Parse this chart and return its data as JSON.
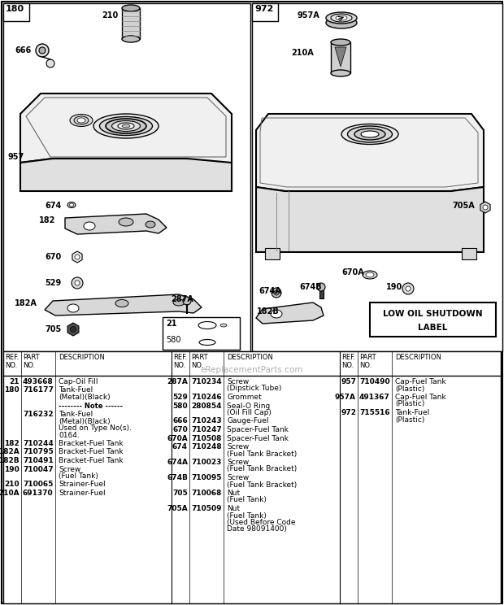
{
  "bg_color": "#ffffff",
  "watermark": "eReplacementParts.com",
  "parts_col1": [
    [
      "21",
      "493668",
      "Cap-Oil Fill"
    ],
    [
      "180",
      "716177",
      "Tank-Fuel\n(Metal)(Black)"
    ],
    [
      "NOTE",
      "",
      "-------- Note ------"
    ],
    [
      "",
      "716232",
      "Tank-Fuel\n(Metal)(Black)\nUsed on Type No(s).\n0164."
    ],
    [
      "182",
      "710244",
      "Bracket-Fuel Tank"
    ],
    [
      "182A",
      "710795",
      "Bracket-Fuel Tank"
    ],
    [
      "182B",
      "710491",
      "Bracket-Fuel Tank"
    ],
    [
      "190",
      "710047",
      "Screw\n(Fuel Tank)"
    ],
    [
      "210",
      "710065",
      "Strainer-Fuel"
    ],
    [
      "210A",
      "691370",
      "Strainer-Fuel"
    ]
  ],
  "parts_col2": [
    [
      "287A",
      "710234",
      "Screw\n(Dipstick Tube)"
    ],
    [
      "529",
      "710246",
      "Grommet"
    ],
    [
      "580",
      "280854",
      "Seal-O Ring\n(Oil Fill Cap)"
    ],
    [
      "666",
      "710243",
      "Gauge-Fuel"
    ],
    [
      "670",
      "710247",
      "Spacer-Fuel Tank"
    ],
    [
      "670A",
      "710508",
      "Spacer-Fuel Tank"
    ],
    [
      "674",
      "710248",
      "Screw\n(Fuel Tank Bracket)"
    ],
    [
      "674A",
      "710023",
      "Screw\n(Fuel Tank Bracket)"
    ],
    [
      "674B",
      "710095",
      "Screw\n(Fuel Tank Bracket)"
    ],
    [
      "705",
      "710068",
      "Nut\n(Fuel Tank)"
    ],
    [
      "705A",
      "710509",
      "Nut\n(Fuel Tank)\n(Used Before Code\nDate 98091400)"
    ]
  ],
  "parts_col3": [
    [
      "957",
      "710490",
      "Cap-Fuel Tank\n(Plastic)"
    ],
    [
      "957A",
      "491367",
      "Cap-Fuel Tank\n(Plastic)"
    ],
    [
      "972",
      "715516",
      "Tank-Fuel\n(Plastic)"
    ]
  ]
}
